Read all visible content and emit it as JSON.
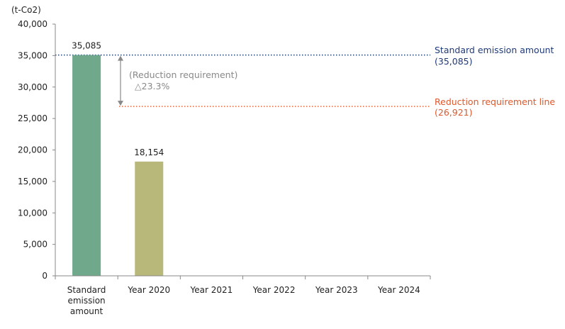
{
  "chart_data": {
    "type": "bar",
    "ylabel": "(t-Co2)",
    "ylim": [
      0,
      40000
    ],
    "yticks": [
      "0",
      "5,000",
      "10,000",
      "15,000",
      "20,000",
      "25,000",
      "30,000",
      "35,000",
      "40,000"
    ],
    "grid": false,
    "categories": [
      [
        "Standard",
        "emission",
        "amount"
      ],
      [
        "Year 2020"
      ],
      [
        "Year 2021"
      ],
      [
        "Year 2022"
      ],
      [
        "Year 2023"
      ],
      [
        "Year 2024"
      ]
    ],
    "values": [
      35085,
      18154,
      null,
      null,
      null,
      null
    ],
    "data_labels": [
      "35,085",
      "18,154",
      "",
      "",
      "",
      ""
    ],
    "colors": [
      "#6fa88b",
      "#b8b87a",
      "#b8b87a",
      "#b8b87a",
      "#b8b87a",
      "#b8b87a"
    ],
    "reference_lines": [
      {
        "value": 35085,
        "color": "#1f3a7a",
        "style": "dotted",
        "label": "Standard emission amount",
        "sublabel": "(35,085)"
      },
      {
        "value": 26921,
        "color": "#e0572a",
        "style": "dotted",
        "label": "Reduction requirement line",
        "sublabel": "(26,921)"
      }
    ],
    "annotation": {
      "line1": "(Reduction requirement)",
      "line2": "△23.3%",
      "color": "#888888"
    }
  }
}
